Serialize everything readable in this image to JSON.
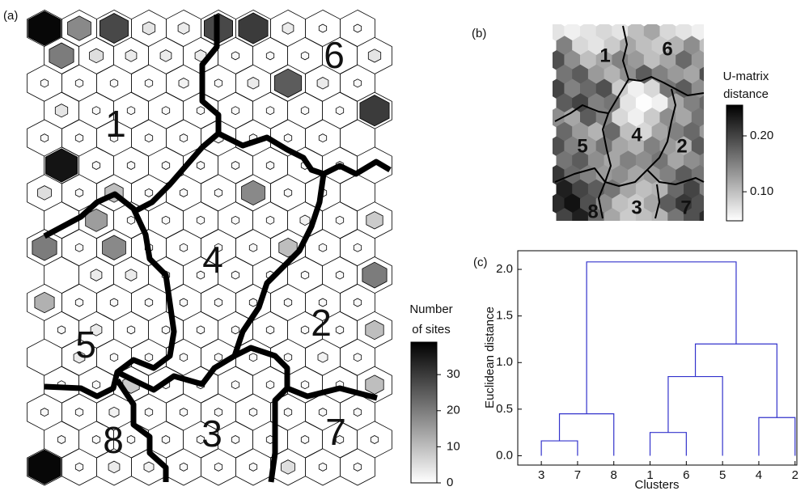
{
  "chart_data": [
    {
      "type": "hexmap",
      "panel_label": "(a)",
      "values": [
        [
          38,
          18,
          28,
          4,
          3,
          28,
          30,
          3,
          1,
          1
        ],
        [
          20,
          5,
          3,
          3,
          3,
          1,
          1,
          1,
          0,
          4
        ],
        [
          1,
          1,
          1,
          1,
          2,
          1,
          3,
          25,
          3,
          1
        ],
        [
          4,
          1,
          1,
          1,
          1,
          1,
          1,
          1,
          1,
          30
        ],
        [
          1,
          1,
          1,
          1,
          1,
          2,
          1,
          1,
          1,
          0
        ],
        [
          36,
          1,
          1,
          1,
          1,
          1,
          1,
          1,
          1,
          0
        ],
        [
          5,
          1,
          10,
          1,
          1,
          1,
          18,
          1,
          1,
          0
        ],
        [
          0,
          15,
          1,
          1,
          1,
          1,
          1,
          2,
          1,
          8
        ],
        [
          20,
          1,
          18,
          1,
          1,
          1,
          1,
          10,
          1,
          1
        ],
        [
          0,
          3,
          3,
          1,
          1,
          1,
          1,
          1,
          1,
          20
        ],
        [
          12,
          1,
          1,
          1,
          1,
          1,
          1,
          1,
          1,
          1
        ],
        [
          1,
          3,
          1,
          1,
          1,
          1,
          1,
          1,
          1,
          10
        ],
        [
          0,
          3,
          1,
          1,
          1,
          1,
          1,
          1,
          2,
          1
        ],
        [
          1,
          1,
          8,
          1,
          1,
          1,
          1,
          1,
          1,
          10
        ],
        [
          1,
          1,
          2,
          1,
          1,
          1,
          1,
          1,
          1,
          1
        ],
        [
          1,
          1,
          1,
          1,
          1,
          1,
          1,
          1,
          1,
          1
        ],
        [
          38,
          1,
          3,
          2,
          1,
          1,
          1,
          5,
          1,
          1
        ]
      ],
      "cluster_labels": [
        "6",
        "1",
        "4",
        "2",
        "5",
        "8",
        "3",
        "7"
      ],
      "colorbar_label": [
        "Number",
        "of sites"
      ],
      "clim": [
        0,
        39
      ],
      "cticks": [
        0,
        10,
        20,
        30
      ]
    },
    {
      "type": "umatrix",
      "panel_label": "(b)",
      "values": [
        [
          0.07,
          0.06,
          0.07,
          0.08,
          0.07,
          0.1,
          0.12,
          0.08,
          0.07,
          0.06
        ],
        [
          0.15,
          0.08,
          0.07,
          0.09,
          0.12,
          0.1,
          0.09,
          0.11,
          0.14,
          0.1
        ],
        [
          0.19,
          0.14,
          0.1,
          0.12,
          0.15,
          0.13,
          0.1,
          0.12,
          0.17,
          0.13
        ],
        [
          0.16,
          0.18,
          0.13,
          0.11,
          0.14,
          0.18,
          0.15,
          0.13,
          0.12,
          0.19
        ],
        [
          0.2,
          0.15,
          0.17,
          0.19,
          0.09,
          0.06,
          0.08,
          0.16,
          0.18,
          0.14
        ],
        [
          0.18,
          0.2,
          0.15,
          0.16,
          0.07,
          0.05,
          0.06,
          0.12,
          0.15,
          0.17
        ],
        [
          0.14,
          0.12,
          0.18,
          0.15,
          0.08,
          0.06,
          0.09,
          0.14,
          0.12,
          0.16
        ],
        [
          0.17,
          0.13,
          0.11,
          0.17,
          0.1,
          0.08,
          0.12,
          0.15,
          0.17,
          0.13
        ],
        [
          0.19,
          0.15,
          0.13,
          0.16,
          0.12,
          0.11,
          0.15,
          0.13,
          0.11,
          0.18
        ],
        [
          0.16,
          0.18,
          0.14,
          0.12,
          0.15,
          0.14,
          0.16,
          0.12,
          0.14,
          0.15
        ],
        [
          0.21,
          0.17,
          0.15,
          0.13,
          0.14,
          0.12,
          0.13,
          0.15,
          0.18,
          0.16
        ],
        [
          0.23,
          0.2,
          0.18,
          0.16,
          0.12,
          0.1,
          0.11,
          0.17,
          0.2,
          0.15
        ],
        [
          0.22,
          0.24,
          0.19,
          0.14,
          0.1,
          0.09,
          0.12,
          0.18,
          0.21,
          0.19
        ],
        [
          0.2,
          0.23,
          0.17,
          0.12,
          0.09,
          0.1,
          0.11,
          0.16,
          0.19,
          0.22
        ]
      ],
      "cluster_labels": [
        "1",
        "6",
        "4",
        "5",
        "2",
        "8",
        "3",
        "7"
      ],
      "colorbar_label": [
        "U-matrix",
        "distance"
      ],
      "clim": [
        0.048,
        0.255
      ],
      "cticks": [
        {
          "value": 0.1,
          "label": "0.10"
        },
        {
          "value": 0.2,
          "label": "0.20"
        }
      ]
    },
    {
      "type": "dendrogram",
      "panel_label": "(c)",
      "categories": [
        "3",
        "7",
        "8",
        "1",
        "6",
        "5",
        "4",
        "2"
      ],
      "tree": {
        "height": 2.08,
        "children": [
          {
            "height": 0.45,
            "children": [
              {
                "height": 0.16,
                "children": [
                  0,
                  1
                ]
              },
              2
            ]
          },
          {
            "height": 1.2,
            "children": [
              {
                "height": 0.85,
                "children": [
                  {
                    "height": 0.25,
                    "children": [
                      3,
                      4
                    ]
                  },
                  5
                ]
              },
              {
                "height": 0.41,
                "children": [
                  6,
                  7
                ]
              }
            ]
          }
        ]
      },
      "color": "#3333cc",
      "ylim": [
        -0.1,
        2.2
      ],
      "yticks": [
        {
          "value": 0,
          "label": "0.0"
        },
        {
          "value": 0.5,
          "label": "0.5"
        },
        {
          "value": 1,
          "label": "1.0"
        },
        {
          "value": 1.5,
          "label": "1.5"
        },
        {
          "value": 2,
          "label": "2.0"
        }
      ],
      "xlabel": "Clusters",
      "ylabel": "Euclidean distance"
    }
  ]
}
